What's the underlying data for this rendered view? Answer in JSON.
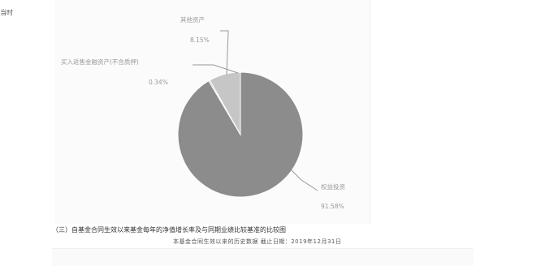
{
  "corner_text": "当时",
  "chart_data": {
    "type": "pie",
    "labels": [
      "权益投资",
      "买入返售金融资产(不含质押)",
      "其他资产"
    ],
    "values": [
      91.58,
      0.34,
      8.15
    ],
    "value_labels": [
      "91.58%",
      "0.34%",
      "8.15%"
    ],
    "colors": [
      "#8c8c8c",
      "#a8a8a8",
      "#c6c6c6"
    ]
  },
  "section_heading": "（三）自基金合同生效以来基金每年的净值增长率及与同期业绩比较基准的比较图",
  "sub_caption": "本基金合同生效以来的历史数据 截止日期：2019年12月31日"
}
